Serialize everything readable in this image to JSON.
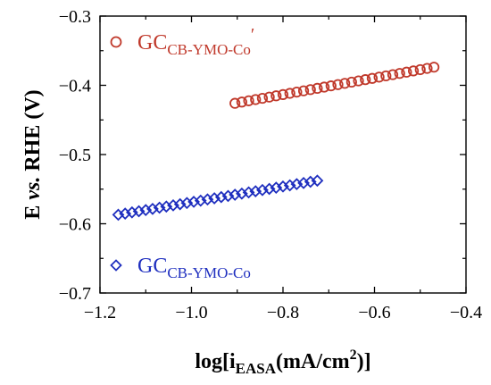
{
  "chart_data": {
    "type": "scatter",
    "xlabel": {
      "base": "log[i",
      "sub": "EASA",
      "rest": "(mA/cm",
      "sup": "2",
      "end": ")]"
    },
    "ylabel": {
      "pre": "E ",
      "italic": "vs.",
      "post": " RHE (V)"
    },
    "xlim": [
      -1.2,
      -0.4
    ],
    "ylim": [
      -0.7,
      -0.3
    ],
    "xticks": [
      -1.2,
      -1.0,
      -0.8,
      -0.6,
      -0.4
    ],
    "xtick_labels": [
      "−1.2",
      "−1.0",
      "−0.8",
      "−0.6",
      "−0.4"
    ],
    "yticks": [
      -0.7,
      -0.6,
      -0.5,
      -0.4,
      -0.3
    ],
    "ytick_labels": [
      "−0.7",
      "−0.6",
      "−0.5",
      "−0.4",
      "−0.3"
    ],
    "grid": false,
    "series": [
      {
        "name": {
          "base": "GC",
          "sub": "CB-YMO-Co",
          "suffix": "′"
        },
        "marker": "circle",
        "color": "#c0392b",
        "x": [
          -0.905,
          -0.89,
          -0.875,
          -0.86,
          -0.845,
          -0.83,
          -0.815,
          -0.8,
          -0.785,
          -0.77,
          -0.755,
          -0.74,
          -0.725,
          -0.71,
          -0.695,
          -0.68,
          -0.665,
          -0.65,
          -0.635,
          -0.62,
          -0.605,
          -0.59,
          -0.575,
          -0.56,
          -0.545,
          -0.53,
          -0.515,
          -0.5,
          -0.485,
          -0.47
        ],
        "y": [
          -0.426,
          -0.4242,
          -0.4224,
          -0.4206,
          -0.4188,
          -0.417,
          -0.4152,
          -0.4134,
          -0.4116,
          -0.4098,
          -0.408,
          -0.4062,
          -0.4044,
          -0.4026,
          -0.4008,
          -0.399,
          -0.3972,
          -0.3954,
          -0.3936,
          -0.3918,
          -0.39,
          -0.3882,
          -0.3864,
          -0.3846,
          -0.3828,
          -0.381,
          -0.3792,
          -0.3774,
          -0.3756,
          -0.3738
        ]
      },
      {
        "name": {
          "base": "GC",
          "sub": "CB-YMO-Co",
          "suffix": ""
        },
        "marker": "diamond",
        "color": "#1f2fbf",
        "x": [
          -1.16,
          -1.145,
          -1.13,
          -1.115,
          -1.1,
          -1.085,
          -1.07,
          -1.055,
          -1.04,
          -1.025,
          -1.01,
          -0.995,
          -0.98,
          -0.965,
          -0.95,
          -0.935,
          -0.92,
          -0.905,
          -0.89,
          -0.875,
          -0.86,
          -0.845,
          -0.83,
          -0.815,
          -0.8,
          -0.785,
          -0.77,
          -0.755,
          -0.74,
          -0.725
        ],
        "y": [
          -0.587,
          -0.5853,
          -0.5836,
          -0.5819,
          -0.5802,
          -0.5785,
          -0.5768,
          -0.5751,
          -0.5734,
          -0.5717,
          -0.57,
          -0.5683,
          -0.5666,
          -0.5649,
          -0.5632,
          -0.5615,
          -0.5598,
          -0.5581,
          -0.5564,
          -0.5547,
          -0.553,
          -0.5513,
          -0.5496,
          -0.5479,
          -0.5462,
          -0.5445,
          -0.5428,
          -0.5411,
          -0.5394,
          -0.5377
        ]
      }
    ]
  }
}
